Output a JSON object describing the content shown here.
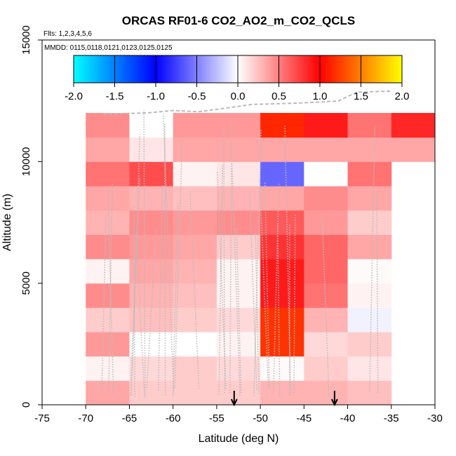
{
  "chart_data": {
    "type": "heatmap",
    "title": "ORCAS RF01-6 CO2_AO2_m_CO2_QCLS",
    "flights_label": "Flts: 1,2,3,4,5,6",
    "dates_label": "MMDD: 0115,0118,0121,0123,0125,0125",
    "xlabel": "Latitude (deg N)",
    "ylabel": "Altitude (m)",
    "xlim": [
      -75,
      -30
    ],
    "ylim": [
      0,
      15000
    ],
    "x_ticks": [
      -75,
      -70,
      -65,
      -60,
      -55,
      -50,
      -45,
      -40,
      -35,
      -30
    ],
    "y_ticks": [
      0,
      5000,
      10000,
      15000
    ],
    "colorbar": {
      "range": [
        -2.0,
        2.0
      ],
      "ticks": [
        -2.0,
        -1.5,
        -1.0,
        -0.5,
        0.0,
        0.5,
        1.0,
        1.5,
        2.0
      ],
      "tick_labels": [
        "-2.0",
        "-1.5",
        "-1.0",
        "-0.5",
        "0.0",
        "0.5",
        "1.0",
        "1.5",
        "2.0"
      ],
      "colors": [
        "#00ffff",
        "#0000ff",
        "#ffffff",
        "#ff0000",
        "#ffff00"
      ]
    },
    "cell_width_deg": 5,
    "cell_height_m": 1000,
    "cells": [
      {
        "lat": -70,
        "alt": 0,
        "value": 0.35
      },
      {
        "lat": -65,
        "alt": 0,
        "value": 0.2
      },
      {
        "lat": -60,
        "alt": 0,
        "value": 0.2
      },
      {
        "lat": -55,
        "alt": 0,
        "value": 0.2
      },
      {
        "lat": -50,
        "alt": 0,
        "value": 0.3
      },
      {
        "lat": -45,
        "alt": 0,
        "value": 0.3
      },
      {
        "lat": -40,
        "alt": 0,
        "value": 0.25
      },
      {
        "lat": -70,
        "alt": 1000,
        "value": 0.05
      },
      {
        "lat": -65,
        "alt": 1000,
        "value": 0.15
      },
      {
        "lat": -60,
        "alt": 1000,
        "value": 0.2
      },
      {
        "lat": -55,
        "alt": 1000,
        "value": 0.15
      },
      {
        "lat": -50,
        "alt": 1000,
        "value": 0.02
      },
      {
        "lat": -45,
        "alt": 1000,
        "value": 0.2
      },
      {
        "lat": -40,
        "alt": 1000,
        "value": 0.1
      },
      {
        "lat": -70,
        "alt": 2000,
        "value": 0.4
      },
      {
        "lat": -65,
        "alt": 2000,
        "value": 0.0
      },
      {
        "lat": -60,
        "alt": 2000,
        "value": 0.0
      },
      {
        "lat": -55,
        "alt": 2000,
        "value": 0.05
      },
      {
        "lat": -50,
        "alt": 2000,
        "value": 1.2
      },
      {
        "lat": -45,
        "alt": 2000,
        "value": 0.15
      },
      {
        "lat": -40,
        "alt": 2000,
        "value": 0.2
      },
      {
        "lat": -70,
        "alt": 3000,
        "value": 0.2
      },
      {
        "lat": -65,
        "alt": 3000,
        "value": 0.25
      },
      {
        "lat": -60,
        "alt": 3000,
        "value": 0.2
      },
      {
        "lat": -55,
        "alt": 3000,
        "value": 0.15
      },
      {
        "lat": -50,
        "alt": 3000,
        "value": 1.2
      },
      {
        "lat": -45,
        "alt": 3000,
        "value": 0.3
      },
      {
        "lat": -40,
        "alt": 3000,
        "value": -0.05
      },
      {
        "lat": -70,
        "alt": 4000,
        "value": 0.45
      },
      {
        "lat": -65,
        "alt": 4000,
        "value": 0.3
      },
      {
        "lat": -60,
        "alt": 4000,
        "value": 0.25
      },
      {
        "lat": -55,
        "alt": 4000,
        "value": 0.05
      },
      {
        "lat": -50,
        "alt": 4000,
        "value": 0.9
      },
      {
        "lat": -45,
        "alt": 4000,
        "value": 0.55
      },
      {
        "lat": -40,
        "alt": 4000,
        "value": 0.05
      },
      {
        "lat": -70,
        "alt": 5000,
        "value": 0.05
      },
      {
        "lat": -65,
        "alt": 5000,
        "value": 0.35
      },
      {
        "lat": -60,
        "alt": 5000,
        "value": 0.3
      },
      {
        "lat": -55,
        "alt": 5000,
        "value": 0.05
      },
      {
        "lat": -50,
        "alt": 5000,
        "value": 0.9
      },
      {
        "lat": -45,
        "alt": 5000,
        "value": 0.6
      },
      {
        "lat": -40,
        "alt": 5000,
        "value": 0.02
      },
      {
        "lat": -70,
        "alt": 6000,
        "value": 0.45
      },
      {
        "lat": -65,
        "alt": 6000,
        "value": 0.4
      },
      {
        "lat": -60,
        "alt": 6000,
        "value": 0.35
      },
      {
        "lat": -55,
        "alt": 6000,
        "value": 0.2
      },
      {
        "lat": -50,
        "alt": 6000,
        "value": 0.8
      },
      {
        "lat": -45,
        "alt": 6000,
        "value": 0.6
      },
      {
        "lat": -40,
        "alt": 6000,
        "value": 0.35
      },
      {
        "lat": -70,
        "alt": 7000,
        "value": 0.3
      },
      {
        "lat": -65,
        "alt": 7000,
        "value": 0.45
      },
      {
        "lat": -60,
        "alt": 7000,
        "value": 0.4
      },
      {
        "lat": -55,
        "alt": 7000,
        "value": 0.45
      },
      {
        "lat": -50,
        "alt": 7000,
        "value": 0.65
      },
      {
        "lat": -45,
        "alt": 7000,
        "value": 0.4
      },
      {
        "lat": -40,
        "alt": 7000,
        "value": 0.2
      },
      {
        "lat": -70,
        "alt": 8000,
        "value": 0.35
      },
      {
        "lat": -65,
        "alt": 8000,
        "value": 0.3
      },
      {
        "lat": -60,
        "alt": 8000,
        "value": 0.25
      },
      {
        "lat": -55,
        "alt": 8000,
        "value": 0.3
      },
      {
        "lat": -50,
        "alt": 8000,
        "value": 0.35
      },
      {
        "lat": -45,
        "alt": 8000,
        "value": 0.45
      },
      {
        "lat": -40,
        "alt": 8000,
        "value": 0.35
      },
      {
        "lat": -70,
        "alt": 9000,
        "value": 0.55
      },
      {
        "lat": -65,
        "alt": 9000,
        "value": 0.7
      },
      {
        "lat": -60,
        "alt": 9000,
        "value": 0.05
      },
      {
        "lat": -55,
        "alt": 9000,
        "value": 0.1
      },
      {
        "lat": -50,
        "alt": 9000,
        "value": -0.6
      },
      {
        "lat": -45,
        "alt": 9000,
        "value": 0.0
      },
      {
        "lat": -40,
        "alt": 9000,
        "value": 0.55
      },
      {
        "lat": -70,
        "alt": 10000,
        "value": 0.35
      },
      {
        "lat": -65,
        "alt": 10000,
        "value": 0.1
      },
      {
        "lat": -60,
        "alt": 10000,
        "value": 0.35
      },
      {
        "lat": -55,
        "alt": 10000,
        "value": 0.35
      },
      {
        "lat": -50,
        "alt": 10000,
        "value": 0.35
      },
      {
        "lat": -45,
        "alt": 10000,
        "value": 0.35
      },
      {
        "lat": -40,
        "alt": 10000,
        "value": 0.35
      },
      {
        "lat": -35,
        "alt": 10000,
        "value": 0.35
      },
      {
        "lat": -70,
        "alt": 11000,
        "value": 0.45
      },
      {
        "lat": -65,
        "alt": 11000,
        "value": 0.0
      },
      {
        "lat": -60,
        "alt": 11000,
        "value": 0.4
      },
      {
        "lat": -55,
        "alt": 11000,
        "value": 0.4
      },
      {
        "lat": -50,
        "alt": 11000,
        "value": 1.15
      },
      {
        "lat": -45,
        "alt": 11000,
        "value": 0.9
      },
      {
        "lat": -40,
        "alt": 11000,
        "value": 0.55
      },
      {
        "lat": -35,
        "alt": 11000,
        "value": 0.85
      }
    ],
    "arrows_lat": [
      -53,
      -41.5
    ],
    "flight_track_color": "#bbbbbb"
  }
}
